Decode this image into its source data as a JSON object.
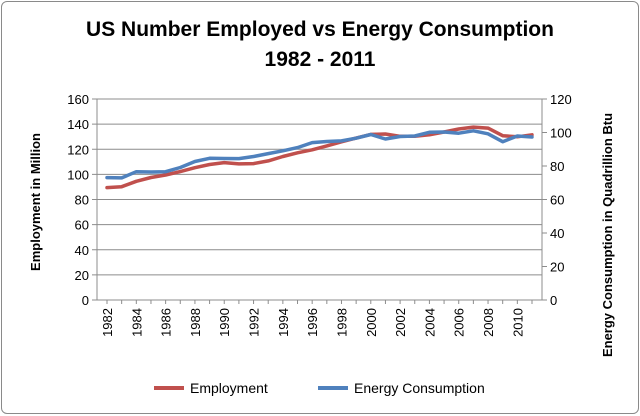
{
  "chart_data": {
    "type": "line",
    "title_line1": "US Number Employed vs Energy Consumption",
    "title_line2": "1982 - 2011",
    "x": [
      1982,
      1983,
      1984,
      1985,
      1986,
      1987,
      1988,
      1989,
      1990,
      1991,
      1992,
      1993,
      1994,
      1995,
      1996,
      1997,
      1998,
      1999,
      2000,
      2001,
      2002,
      2003,
      2004,
      2005,
      2006,
      2007,
      2008,
      2009,
      2010,
      2011
    ],
    "x_tick_labels": [
      "1982",
      "1984",
      "1986",
      "1988",
      "1990",
      "1992",
      "1994",
      "1996",
      "1998",
      "2000",
      "2002",
      "2004",
      "2006",
      "2008",
      "2010"
    ],
    "y_left": {
      "label": "Employment in Million",
      "range": [
        0,
        160
      ],
      "ticks": [
        "0",
        "20",
        "40",
        "60",
        "80",
        "100",
        "120",
        "140",
        "160"
      ]
    },
    "y_right": {
      "label": "Energy Consumption in Quadrillion Btu",
      "range": [
        0,
        120
      ],
      "ticks": [
        "0",
        "20",
        "40",
        "60",
        "80",
        "100",
        "120"
      ]
    },
    "series": [
      {
        "name": "Employment",
        "axis": "left",
        "color": "#c0504d",
        "values": [
          89.5,
          90.2,
          94.5,
          97.5,
          99.5,
          102.2,
          105.3,
          107.9,
          109.4,
          108.3,
          108.6,
          110.7,
          114.2,
          117.2,
          119.6,
          122.7,
          125.9,
          128.9,
          131.8,
          132.1,
          130.3,
          130.3,
          131.5,
          133.7,
          136.1,
          137.6,
          136.8,
          130.8,
          129.9,
          131.5
        ]
      },
      {
        "name": "Energy Consumption",
        "axis": "right",
        "color": "#4f81bd",
        "values": [
          73.1,
          72.9,
          76.6,
          76.4,
          76.6,
          79.1,
          82.7,
          84.6,
          84.5,
          84.4,
          85.7,
          87.4,
          89.1,
          91.0,
          94.0,
          94.6,
          95.0,
          96.6,
          98.8,
          96.1,
          97.6,
          97.9,
          100.1,
          100.3,
          99.6,
          101.0,
          99.2,
          94.5,
          97.9,
          97.3
        ]
      }
    ],
    "grid": true,
    "legend_position": "bottom"
  }
}
